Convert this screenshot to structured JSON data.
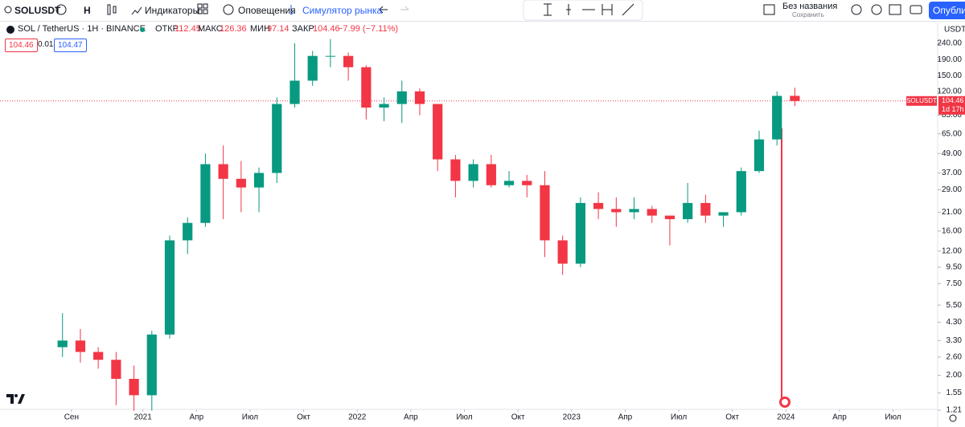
{
  "toolbar": {
    "symbol": "SOLUSDT",
    "interval": "H",
    "indicators": "Индикаторы",
    "alerts": "Оповещения",
    "replay": "Симулятор рынка",
    "layout_name": "Без названия",
    "save": "Сохранить",
    "publish": "Опубли"
  },
  "legend": {
    "instrument": "SOL / TetherUS · 1H · BINANCE",
    "open_label": "ОТКР",
    "open": 112.45,
    "high_label": "МАКС",
    "high": 126.36,
    "low_label": "МИН",
    "low": 97.14,
    "close_label": "ЗАКР",
    "close": 104.46,
    "change": "−7.99 (−7.11%)",
    "bid": 104.46,
    "spread": 0.01,
    "ask": 104.47
  },
  "chart_data": {
    "type": "candlestick",
    "currency": "USDT",
    "x": [
      "2020-08",
      "2020-09",
      "2020-10",
      "2020-11",
      "2020-12",
      "2021-01",
      "2021-02",
      "2021-03",
      "2021-04",
      "2021-05",
      "2021-06",
      "2021-07",
      "2021-08",
      "2021-09",
      "2021-10",
      "2021-11",
      "2021-12",
      "2022-01",
      "2022-02",
      "2022-03",
      "2022-04",
      "2022-05",
      "2022-06",
      "2022-07",
      "2022-08",
      "2022-09",
      "2022-10",
      "2022-11",
      "2022-12",
      "2023-01",
      "2023-02",
      "2023-03",
      "2023-04",
      "2023-05",
      "2023-06",
      "2023-07",
      "2023-08",
      "2023-09",
      "2023-10",
      "2023-11",
      "2023-12",
      "2024-01"
    ],
    "open": [
      3.0,
      3.3,
      2.8,
      2.5,
      1.9,
      1.5,
      3.6,
      14,
      18,
      42,
      34,
      30,
      37,
      100,
      140,
      200,
      200,
      170,
      95,
      100,
      120,
      100,
      45,
      33,
      42,
      31,
      33,
      31,
      14,
      10,
      24,
      22,
      21,
      22,
      20,
      19,
      24,
      20,
      21,
      38,
      60,
      112.45
    ],
    "high": [
      4.9,
      3.9,
      3.0,
      2.8,
      2.3,
      3.8,
      15,
      19.5,
      49,
      55,
      44,
      40,
      110,
      240,
      215,
      255,
      210,
      175,
      110,
      140,
      125,
      100,
      48,
      45,
      48,
      38,
      36,
      38,
      15,
      26,
      28,
      26,
      26,
      23,
      20,
      32,
      27,
      21,
      40,
      68,
      120,
      126.36
    ],
    "low": [
      2.6,
      2.4,
      2.2,
      1.3,
      1.2,
      1.2,
      3.4,
      11.5,
      17,
      19,
      21,
      21,
      32,
      95,
      130,
      170,
      140,
      80,
      78,
      76,
      85,
      38,
      26,
      30,
      30,
      30,
      26,
      11,
      8.5,
      9.5,
      19,
      17,
      19,
      18,
      13,
      18,
      18,
      17,
      20,
      37,
      55,
      97.14
    ],
    "close": [
      3.3,
      2.8,
      2.5,
      1.9,
      1.5,
      3.6,
      14,
      18,
      42,
      34,
      30,
      37,
      100,
      140,
      200,
      200,
      170,
      95,
      100,
      120,
      100,
      45,
      33,
      42,
      31,
      33,
      31,
      14,
      10,
      24,
      22,
      21,
      22,
      20,
      19,
      24,
      20,
      21,
      38,
      60,
      112.45,
      104.46
    ],
    "up_color": "#089981",
    "down_color": "#f23645",
    "log_scale": true,
    "grid": false,
    "ylim": [
      1.09,
      324
    ],
    "yticks": [
      {
        "value": 240,
        "label": "240.00"
      },
      {
        "value": 190,
        "label": "190.00"
      },
      {
        "value": 150,
        "label": "150.00"
      },
      {
        "value": 120,
        "label": "120.00"
      },
      {
        "value": 85,
        "label": "85.00"
      },
      {
        "value": 65,
        "label": "65.00"
      },
      {
        "value": 49,
        "label": "49.00"
      },
      {
        "value": 37,
        "label": "37.00"
      },
      {
        "value": 29,
        "label": "29.00"
      },
      {
        "value": 21,
        "label": "21.00"
      },
      {
        "value": 16,
        "label": "16.00"
      },
      {
        "value": 12,
        "label": "12.00"
      },
      {
        "value": 9.5,
        "label": "9.50"
      },
      {
        "value": 7.5,
        "label": "7.50"
      },
      {
        "value": 5.5,
        "label": "5.50"
      },
      {
        "value": 4.3,
        "label": "4.30"
      },
      {
        "value": 3.3,
        "label": "3.30"
      },
      {
        "value": 2.6,
        "label": "2.60"
      },
      {
        "value": 2,
        "label": "2.00"
      },
      {
        "value": 1.55,
        "label": "1.55"
      },
      {
        "value": 1.21,
        "label": "1.21"
      }
    ],
    "xlim": [
      "2020-05",
      "2024-09"
    ],
    "xticks": [
      {
        "value": "2020-09",
        "label": "Сен"
      },
      {
        "value": "2021-01",
        "label": "2021"
      },
      {
        "value": "2021-04",
        "label": "Апр"
      },
      {
        "value": "2021-07",
        "label": "Июл"
      },
      {
        "value": "2021-10",
        "label": "Окт"
      },
      {
        "value": "2022-01",
        "label": "2022"
      },
      {
        "value": "2022-04",
        "label": "Апр"
      },
      {
        "value": "2022-07",
        "label": "Июл"
      },
      {
        "value": "2022-10",
        "label": "Окт"
      },
      {
        "value": "2023-01",
        "label": "2023"
      },
      {
        "value": "2023-04",
        "label": "Апр"
      },
      {
        "value": "2023-07",
        "label": "Июл"
      },
      {
        "value": "2023-10",
        "label": "Окт"
      },
      {
        "value": "2024-01",
        "label": "2024"
      },
      {
        "value": "2024-04",
        "label": "Апр"
      },
      {
        "value": "2024-07",
        "label": "Июл"
      }
    ],
    "price_line": {
      "value": 104.46,
      "symbol": "SOLUSDT",
      "countdown": "1d 17h",
      "color": "#f23645"
    }
  }
}
